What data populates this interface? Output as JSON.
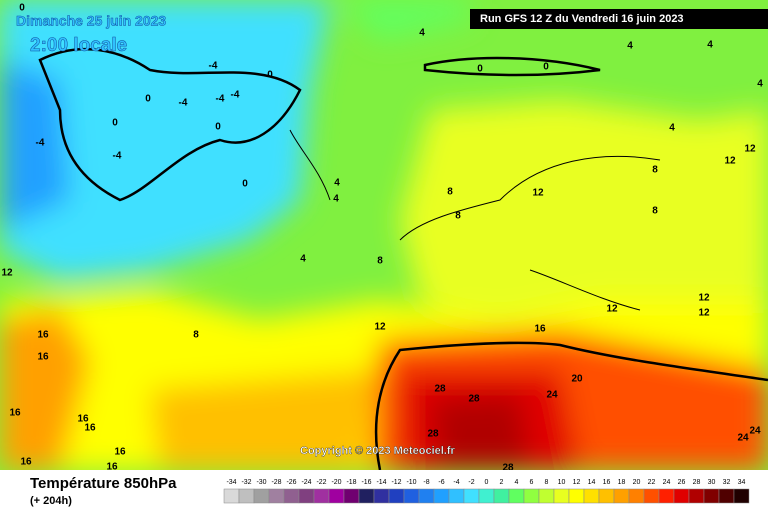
{
  "header": {
    "title": "Dimanche 25 juin 2023",
    "subtitle": "2:00 locale",
    "run": "Run GFS 12 Z du Vendredi 16 juin 2023"
  },
  "copyright": "Copyright © 2023 Meteociel.fr",
  "footer": {
    "title": "Température 850hPa",
    "subtitle": "(+ 204h)"
  },
  "colorbar": {
    "ticks": [
      -34,
      -32,
      -30,
      -28,
      -26,
      -24,
      -22,
      -20,
      -18,
      -16,
      -14,
      -12,
      -10,
      -8,
      -6,
      -4,
      -2,
      0,
      2,
      4,
      6,
      8,
      10,
      12,
      14,
      16,
      18,
      20,
      22,
      24,
      26,
      28,
      30,
      32,
      34
    ],
    "colors": [
      "#d9d9d9",
      "#bfbfbf",
      "#a0a0a0",
      "#a080a0",
      "#906090",
      "#804080",
      "#a030a0",
      "#a000a0",
      "#700070",
      "#202060",
      "#3030a0",
      "#2040c0",
      "#2060e0",
      "#2080f0",
      "#20a0ff",
      "#30c0ff",
      "#40e0ff",
      "#40f0d0",
      "#40f0a0",
      "#60ff60",
      "#90ff40",
      "#c0ff30",
      "#e8ff20",
      "#ffff00",
      "#ffe000",
      "#ffc000",
      "#ffa000",
      "#ff8000",
      "#ff5000",
      "#ff2000",
      "#e00000",
      "#b00000",
      "#800000",
      "#500000",
      "#200000"
    ]
  },
  "contour_labels": [
    0,
    -4,
    0,
    0,
    -4,
    -4,
    -4,
    0,
    0,
    -4,
    -4,
    0,
    4,
    0,
    0,
    4,
    4,
    4,
    4,
    4,
    4,
    4,
    8,
    8,
    12,
    8,
    12,
    12,
    8,
    8,
    12,
    12,
    8,
    16,
    16,
    16,
    16,
    16,
    16,
    16,
    16,
    12,
    12,
    12,
    16,
    20,
    24,
    28,
    28,
    28,
    28,
    24,
    24
  ]
}
